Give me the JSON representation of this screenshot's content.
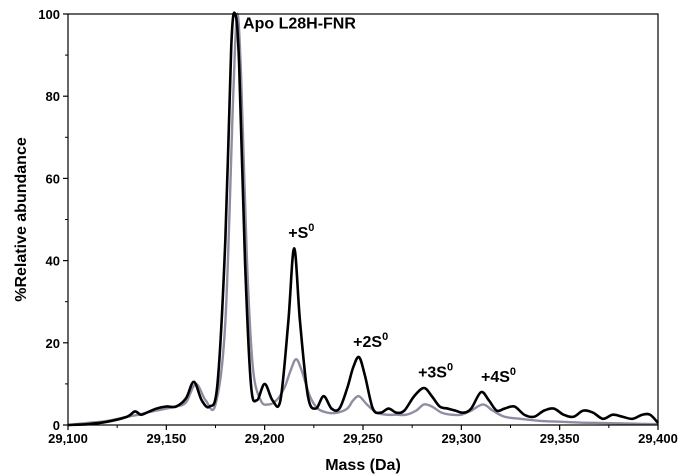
{
  "chart_data": {
    "type": "line",
    "title": "",
    "xlabel": "Mass (Da)",
    "ylabel": "%Relative abundance",
    "xlim": [
      29100,
      29400
    ],
    "ylim": [
      0,
      100
    ],
    "x_ticks": [
      29100,
      29150,
      29200,
      29250,
      29300,
      29350,
      29400
    ],
    "x_tick_labels": [
      "29,100",
      "29,150",
      "29,200",
      "29,250",
      "29,300",
      "29,350",
      "29,400"
    ],
    "y_ticks": [
      0,
      20,
      40,
      60,
      80,
      100
    ],
    "y_tick_labels": [
      "0",
      "20",
      "40",
      "60",
      "80",
      "100"
    ],
    "grid": false,
    "legend": "none",
    "series": [
      {
        "color": "#000000",
        "x": [
          29100,
          29110,
          29120,
          29130,
          29134,
          29137,
          29140,
          29145,
          29150,
          29155,
          29160,
          29164,
          29168,
          29172,
          29176,
          29180,
          29183,
          29185,
          29187,
          29190,
          29193,
          29196,
          29200,
          29204,
          29208,
          29212,
          29215,
          29218,
          29222,
          29226,
          29230,
          29234,
          29238,
          29242,
          29245,
          29248,
          29251,
          29255,
          29259,
          29263,
          29267,
          29271,
          29276,
          29281,
          29285,
          29289,
          29293,
          29297,
          29301,
          29305,
          29310,
          29314,
          29318,
          29322,
          29327,
          29332,
          29337,
          29342,
          29347,
          29352,
          29357,
          29362,
          29367,
          29372,
          29377,
          29382,
          29387,
          29392,
          29396,
          29400
        ],
        "y": [
          0,
          0.2,
          0.8,
          2.0,
          3.3,
          2.5,
          3.0,
          4.0,
          4.5,
          4.5,
          6.5,
          10.5,
          6.0,
          4.5,
          10.0,
          45.0,
          92.0,
          100.0,
          88.0,
          40.0,
          10.0,
          6.0,
          10.0,
          6.0,
          6.0,
          25.0,
          43.0,
          25.0,
          7.0,
          4.0,
          7.0,
          4.0,
          4.0,
          9.0,
          14.0,
          16.5,
          12.0,
          4.0,
          3.0,
          4.0,
          3.0,
          3.5,
          7.0,
          9.0,
          7.0,
          4.5,
          4.0,
          3.5,
          3.0,
          4.0,
          8.0,
          6.0,
          3.5,
          4.0,
          4.5,
          2.5,
          2.0,
          3.5,
          4.0,
          2.5,
          2.0,
          3.5,
          3.0,
          1.5,
          2.5,
          2.0,
          1.5,
          2.5,
          2.5,
          0.5
        ]
      },
      {
        "color": "#8e8ea3",
        "x": [
          29100,
          29110,
          29120,
          29130,
          29136,
          29140,
          29145,
          29150,
          29155,
          29160,
          29165,
          29170,
          29175,
          29180,
          29184,
          29186,
          29188,
          29191,
          29194,
          29198,
          29202,
          29206,
          29210,
          29213,
          29216,
          29219,
          29223,
          29227,
          29232,
          29237,
          29242,
          29245,
          29248,
          29252,
          29257,
          29262,
          29267,
          29272,
          29277,
          29281,
          29285,
          29290,
          29295,
          29300,
          29305,
          29311,
          29316,
          29322,
          29330,
          29340,
          29350,
          29360,
          29370,
          29380,
          29390,
          29400
        ],
        "y": [
          0,
          0.5,
          1.0,
          2.0,
          2.5,
          3.0,
          3.5,
          4.0,
          4.5,
          5.5,
          10.0,
          6.0,
          5.0,
          25.0,
          80.0,
          100.0,
          85.0,
          40.0,
          14.0,
          6.0,
          5.0,
          6.0,
          9.0,
          13.0,
          16.0,
          13.0,
          7.0,
          4.0,
          3.0,
          3.0,
          4.0,
          6.0,
          7.0,
          5.0,
          3.0,
          2.5,
          2.5,
          2.5,
          3.5,
          5.0,
          4.5,
          3.0,
          2.5,
          2.5,
          3.5,
          5.0,
          3.5,
          2.0,
          1.5,
          1.0,
          0.8,
          0.6,
          0.5,
          0.4,
          0.3,
          0.2
        ]
      }
    ],
    "annotations": [
      {
        "main": "Apo L28H-FNR",
        "sup": "",
        "x": 29189,
        "y": 96.5
      },
      {
        "main": "+S",
        "sup": "0",
        "x": 29212,
        "y": 45.5
      },
      {
        "main": "+2S",
        "sup": "0",
        "x": 29245,
        "y": 19.0
      },
      {
        "main": "+3S",
        "sup": "0",
        "x": 29278,
        "y": 11.5
      },
      {
        "main": "+4S",
        "sup": "0",
        "x": 29310,
        "y": 10.5
      }
    ]
  }
}
